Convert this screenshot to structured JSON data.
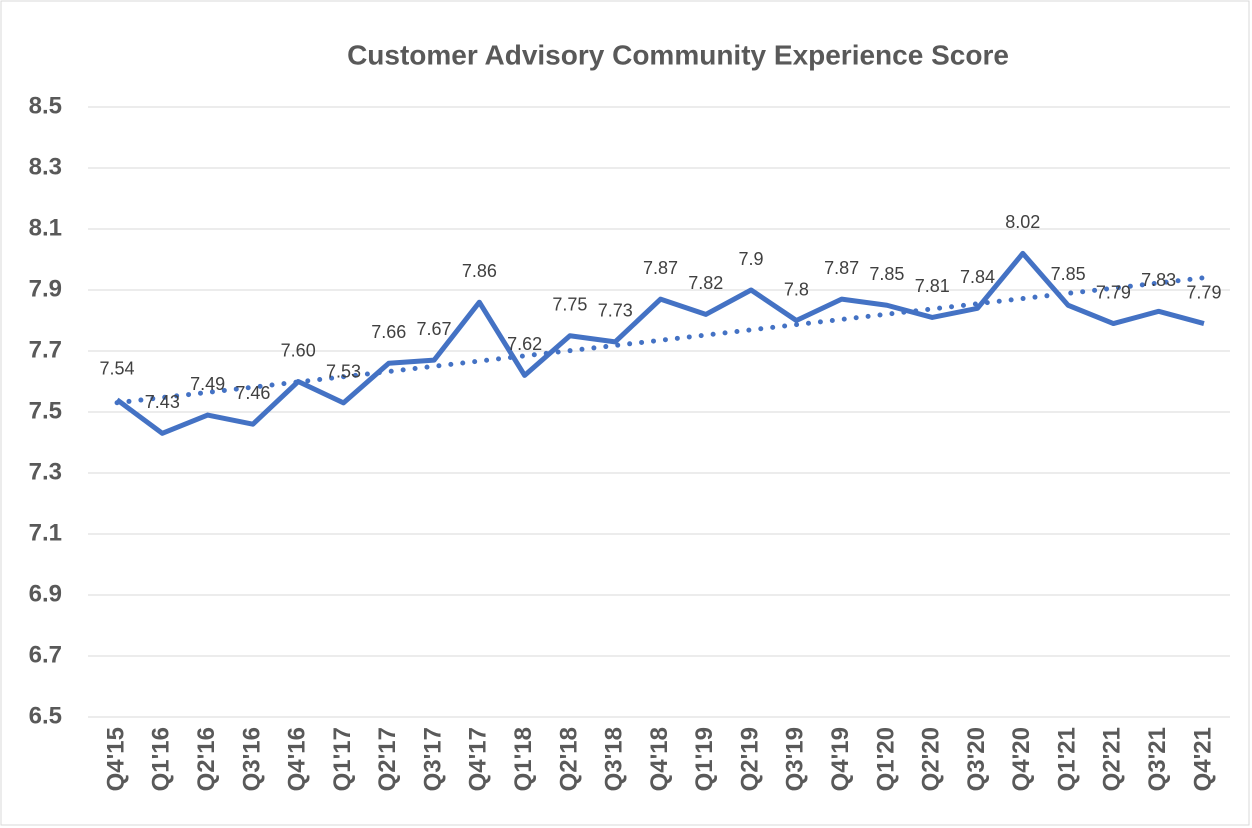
{
  "chart_data": {
    "type": "line",
    "title": "Customer Advisory Community Experience Score",
    "categories": [
      "Q4'15",
      "Q1'16",
      "Q2'16",
      "Q3'16",
      "Q4'16",
      "Q1'17",
      "Q2'17",
      "Q3'17",
      "Q4'17",
      "Q1'18",
      "Q2'18",
      "Q3'18",
      "Q4'18",
      "Q1'19",
      "Q2'19",
      "Q3'19",
      "Q4'19",
      "Q1'20",
      "Q2'20",
      "Q3'20",
      "Q4'20",
      "Q1'21",
      "Q2'21",
      "Q3'21",
      "Q4'21"
    ],
    "values": [
      7.54,
      7.43,
      7.49,
      7.46,
      7.6,
      7.53,
      7.66,
      7.67,
      7.86,
      7.62,
      7.75,
      7.73,
      7.87,
      7.82,
      7.9,
      7.8,
      7.87,
      7.85,
      7.81,
      7.84,
      8.02,
      7.85,
      7.79,
      7.83,
      7.79
    ],
    "value_labels": [
      "7.54",
      "7.43",
      "7.49",
      "7.46",
      "7.60",
      "7.53",
      "7.66",
      "7.67",
      "7.86",
      "7.62",
      "7.75",
      "7.73",
      "7.87",
      "7.82",
      "7.9",
      "7.8",
      "7.87",
      "7.85",
      "7.81",
      "7.84",
      "8.02",
      "7.85",
      "7.79",
      "7.83",
      "7.79"
    ],
    "color": "#4472c4",
    "trendline": "linear",
    "ylim": [
      6.5,
      8.5
    ],
    "yticks": [
      6.5,
      6.7,
      6.9,
      7.1,
      7.3,
      7.5,
      7.7,
      7.9,
      8.1,
      8.3,
      8.5
    ],
    "grid": true
  }
}
